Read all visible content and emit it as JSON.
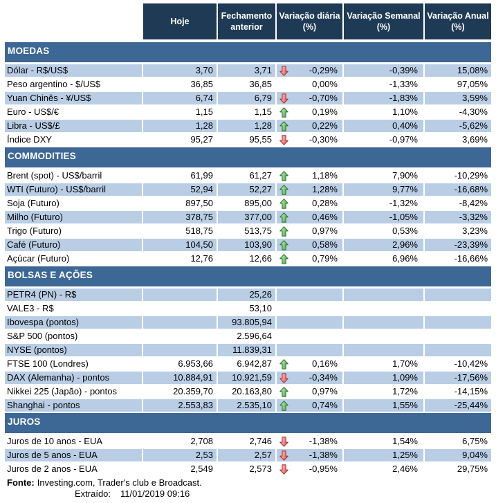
{
  "header": {
    "columns": [
      "Hoje",
      "Fechamento anterior",
      "Variação diária (%)",
      "Variação Semanal (%)",
      "Variação Anual (%)"
    ]
  },
  "sections": [
    {
      "title": "MOEDAS",
      "rows": [
        {
          "label": "Dólar - R$/US$",
          "hoje": "3,70",
          "fechamento": "3,71",
          "arrow": "down",
          "diaria": "-0,29%",
          "semanal": "-0,39%",
          "anual": "15,08%"
        },
        {
          "label": "Peso argentino - $/US$",
          "hoje": "36,85",
          "fechamento": "36,85",
          "arrow": "",
          "diaria": "0,00%",
          "semanal": "-1,33%",
          "anual": "97,05%"
        },
        {
          "label": "Yuan Chinês - ¥/US$",
          "hoje": "6,74",
          "fechamento": "6,79",
          "arrow": "down",
          "diaria": "-0,70%",
          "semanal": "-1,83%",
          "anual": "3,59%"
        },
        {
          "label": "Euro - US$/€",
          "hoje": "1,15",
          "fechamento": "1,15",
          "arrow": "up",
          "diaria": "0,19%",
          "semanal": "1,10%",
          "anual": "-4,30%"
        },
        {
          "label": "Libra - US$/£",
          "hoje": "1,28",
          "fechamento": "1,28",
          "arrow": "up",
          "diaria": "0,22%",
          "semanal": "0,40%",
          "anual": "-5,62%"
        },
        {
          "label": "Índice DXY",
          "hoje": "95,27",
          "fechamento": "95,55",
          "arrow": "down",
          "diaria": "-0,30%",
          "semanal": "-0,97%",
          "anual": "3,69%"
        }
      ]
    },
    {
      "title": "COMMODITIES",
      "rows": [
        {
          "label": "Brent (spot) - US$/barril",
          "hoje": "61,99",
          "fechamento": "61,27",
          "arrow": "up",
          "diaria": "1,18%",
          "semanal": "7,90%",
          "anual": "-10,29%"
        },
        {
          "label": "WTI (Futuro) - US$/barril",
          "hoje": "52,94",
          "fechamento": "52,27",
          "arrow": "up",
          "diaria": "1,28%",
          "semanal": "9,77%",
          "anual": "-16,68%"
        },
        {
          "label": "Soja (Futuro)",
          "hoje": "897,50",
          "fechamento": "895,00",
          "arrow": "up",
          "diaria": "0,28%",
          "semanal": "-1,32%",
          "anual": "-8,42%"
        },
        {
          "label": "Milho (Futuro)",
          "hoje": "378,75",
          "fechamento": "377,00",
          "arrow": "up",
          "diaria": "0,46%",
          "semanal": "-1,05%",
          "anual": "-3,32%"
        },
        {
          "label": "Trigo (Futuro)",
          "hoje": "518,75",
          "fechamento": "513,75",
          "arrow": "up",
          "diaria": "0,97%",
          "semanal": "0,53%",
          "anual": "3,23%"
        },
        {
          "label": "Café (Futuro)",
          "hoje": "104,50",
          "fechamento": "103,90",
          "arrow": "up",
          "diaria": "0,58%",
          "semanal": "2,96%",
          "anual": "-23,39%"
        },
        {
          "label": "Açúcar (Futuro)",
          "hoje": "12,76",
          "fechamento": "12,66",
          "arrow": "up",
          "diaria": "0,79%",
          "semanal": "6,96%",
          "anual": "-16,66%"
        }
      ]
    },
    {
      "title": "BOLSAS E AÇÕES",
      "rows": [
        {
          "label": "PETR4 (PN) - R$",
          "hoje": "",
          "fechamento": "25,26",
          "arrow": "",
          "diaria": "",
          "semanal": "",
          "anual": ""
        },
        {
          "label": "VALE3 - R$",
          "hoje": "",
          "fechamento": "53,10",
          "arrow": "",
          "diaria": "",
          "semanal": "",
          "anual": ""
        },
        {
          "label": "Ibovespa (pontos)",
          "hoje": "",
          "fechamento": "93.805,94",
          "arrow": "",
          "diaria": "",
          "semanal": "",
          "anual": ""
        },
        {
          "label": "S&P 500 (pontos)",
          "hoje": "",
          "fechamento": "2.596,64",
          "arrow": "",
          "diaria": "",
          "semanal": "",
          "anual": ""
        },
        {
          "label": "NYSE (pontos)",
          "hoje": "",
          "fechamento": "11.839,31",
          "arrow": "",
          "diaria": "",
          "semanal": "",
          "anual": ""
        },
        {
          "label": "FTSE 100 (Londres)",
          "hoje": "6.953,66",
          "fechamento": "6.942,87",
          "arrow": "up",
          "diaria": "0,16%",
          "semanal": "1,70%",
          "anual": "-10,42%"
        },
        {
          "label": "DAX (Alemanha) - pontos",
          "hoje": "10.884,91",
          "fechamento": "10.921,59",
          "arrow": "down",
          "diaria": "-0,34%",
          "semanal": "1,09%",
          "anual": "-17,56%"
        },
        {
          "label": "Nikkei 225 (Japão) - pontos",
          "hoje": "20.359,70",
          "fechamento": "20.163,80",
          "arrow": "up",
          "diaria": "0,97%",
          "semanal": "1,72%",
          "anual": "-14,15%"
        },
        {
          "label": "Shanghai - pontos",
          "hoje": "2.553,83",
          "fechamento": "2.535,10",
          "arrow": "up",
          "diaria": "0,74%",
          "semanal": "1,55%",
          "anual": "-25,44%"
        }
      ]
    },
    {
      "title": "JUROS",
      "rows": [
        {
          "label": "Juros de 10 anos - EUA",
          "hoje": "2,708",
          "fechamento": "2,746",
          "arrow": "down",
          "diaria": "-1,38%",
          "semanal": "1,54%",
          "anual": "6,75%"
        },
        {
          "label": "Juros de 5 anos - EUA",
          "hoje": "2,53",
          "fechamento": "2,57",
          "arrow": "down",
          "diaria": "-1,38%",
          "semanal": "1,25%",
          "anual": "9,04%"
        },
        {
          "label": "Juros de 2 anos - EUA",
          "hoje": "2,549",
          "fechamento": "2,573",
          "arrow": "down",
          "diaria": "-0,95%",
          "semanal": "2,46%",
          "anual": "29,75%"
        }
      ]
    }
  ],
  "footer": {
    "fonte_label": "Fonte:",
    "fonte_text": "Investing.com, Trader's club e Broadcast.",
    "extraido_label": "Extraído:",
    "extraido_value": "11/01/2019 09:16"
  },
  "colors": {
    "column_header_bg": "#1f3a55",
    "section_header_bg": "#3d6795",
    "row_stripe_bg": "#b9cde5",
    "arrow_up": "#2c7a2c",
    "arrow_down": "#b03535"
  }
}
